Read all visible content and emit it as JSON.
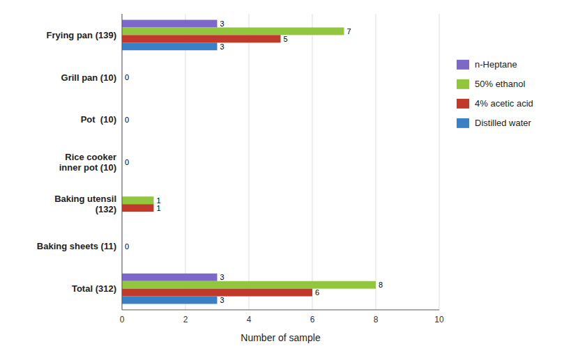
{
  "chart_data": {
    "type": "bar",
    "orientation": "horizontal",
    "categories": [
      "Frying pan (139)",
      "Grill pan (10)",
      "Pot  (10)",
      "Rice cooker\ninner pot (10)",
      "Baking utensil\n(132)",
      "Baking sheets (11)",
      "Total (312)"
    ],
    "series": [
      {
        "name": "n-Heptane",
        "color": "#7B68C8",
        "values": [
          3,
          0,
          0,
          0,
          0,
          0,
          3
        ]
      },
      {
        "name": "50% ethanol",
        "color": "#92C63E",
        "values": [
          7,
          0,
          0,
          0,
          1,
          0,
          8
        ]
      },
      {
        "name": "4% acetic acid",
        "color": "#C0392B",
        "values": [
          5,
          0,
          0,
          0,
          1,
          0,
          6
        ]
      },
      {
        "name": "Distilled water",
        "color": "#3B7FC4",
        "values": [
          3,
          0,
          0,
          0,
          0,
          0,
          3
        ]
      }
    ],
    "annotations": [
      {
        "category": "Grill pan (10)",
        "text": "0"
      },
      {
        "category": "Pot  (10)",
        "text": "0"
      },
      {
        "category": "Rice cooker\ninner pot (10)",
        "text": "0"
      },
      {
        "category": "Baking sheets (11)",
        "text": "0"
      }
    ],
    "x_label": "Number of sample",
    "xlim": [
      0,
      10
    ],
    "xticks": [
      0,
      2,
      4,
      6,
      8,
      10
    ],
    "grid": true,
    "legend": "right",
    "data_labels": true
  }
}
